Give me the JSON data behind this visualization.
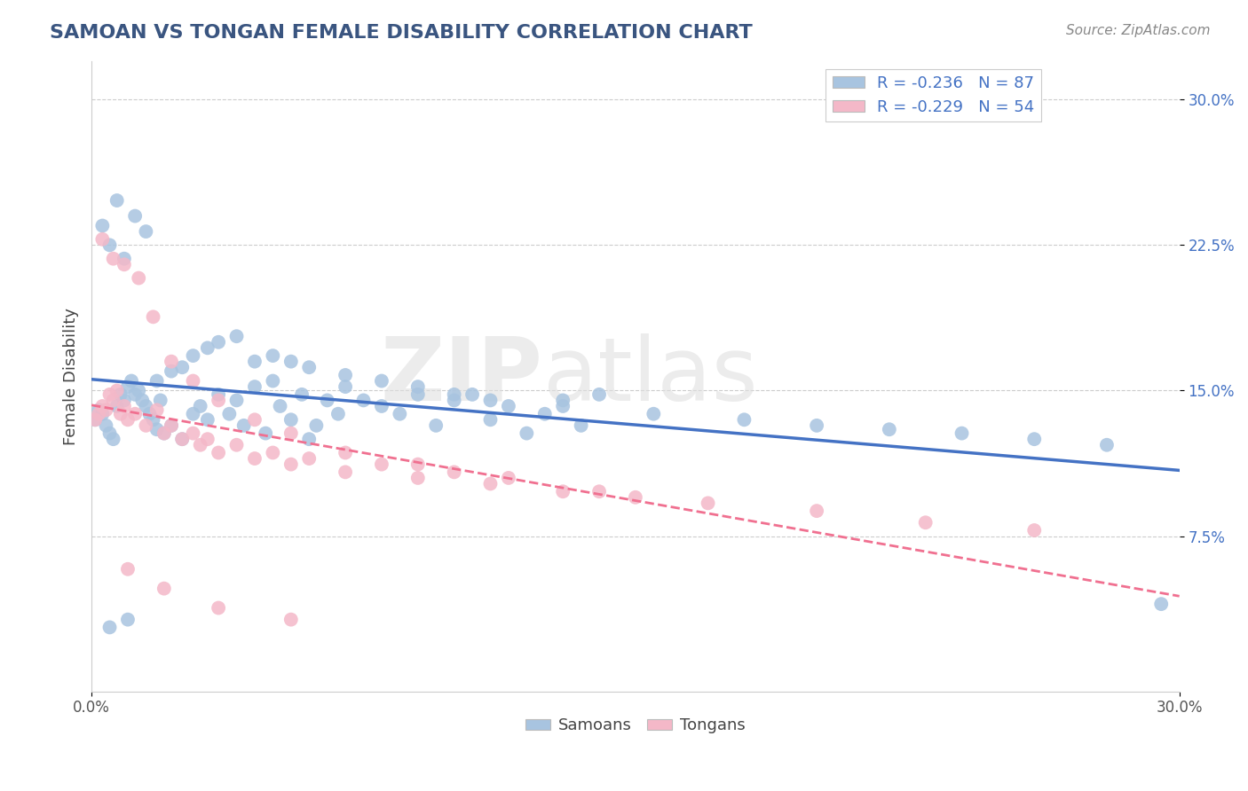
{
  "title": "SAMOAN VS TONGAN FEMALE DISABILITY CORRELATION CHART",
  "source": "Source: ZipAtlas.com",
  "ylabel": "Female Disability",
  "x_min": 0.0,
  "x_max": 0.3,
  "y_min": 0.0,
  "y_max": 0.32,
  "y_ticks": [
    0.075,
    0.15,
    0.225,
    0.3
  ],
  "y_tick_labels": [
    "7.5%",
    "15.0%",
    "22.5%",
    "30.0%"
  ],
  "grid_color": "#cccccc",
  "background_color": "#ffffff",
  "samoan_color": "#a8c4e0",
  "tongan_color": "#f4b8c8",
  "samoan_line_color": "#4472c4",
  "tongan_line_color": "#f07090",
  "R_samoan": -0.236,
  "N_samoan": 87,
  "R_tongan": -0.229,
  "N_tongan": 54,
  "watermark_zip": "ZIP",
  "watermark_atlas": "atlas",
  "samoans_x": [
    0.001,
    0.002,
    0.003,
    0.004,
    0.005,
    0.006,
    0.007,
    0.008,
    0.009,
    0.01,
    0.011,
    0.012,
    0.013,
    0.014,
    0.015,
    0.016,
    0.017,
    0.018,
    0.019,
    0.02,
    0.022,
    0.025,
    0.028,
    0.03,
    0.032,
    0.035,
    0.038,
    0.04,
    0.042,
    0.045,
    0.048,
    0.05,
    0.052,
    0.055,
    0.058,
    0.06,
    0.062,
    0.065,
    0.068,
    0.07,
    0.075,
    0.08,
    0.085,
    0.09,
    0.095,
    0.1,
    0.105,
    0.11,
    0.115,
    0.12,
    0.125,
    0.13,
    0.135,
    0.14,
    0.003,
    0.005,
    0.007,
    0.009,
    0.012,
    0.015,
    0.018,
    0.022,
    0.025,
    0.028,
    0.032,
    0.035,
    0.04,
    0.045,
    0.05,
    0.055,
    0.06,
    0.07,
    0.08,
    0.09,
    0.1,
    0.11,
    0.13,
    0.155,
    0.18,
    0.2,
    0.22,
    0.24,
    0.26,
    0.28,
    0.295,
    0.005,
    0.01
  ],
  "samoans_y": [
    0.135,
    0.14,
    0.138,
    0.132,
    0.128,
    0.125,
    0.142,
    0.148,
    0.145,
    0.152,
    0.155,
    0.148,
    0.15,
    0.145,
    0.142,
    0.138,
    0.135,
    0.13,
    0.145,
    0.128,
    0.132,
    0.125,
    0.138,
    0.142,
    0.135,
    0.148,
    0.138,
    0.145,
    0.132,
    0.152,
    0.128,
    0.155,
    0.142,
    0.135,
    0.148,
    0.125,
    0.132,
    0.145,
    0.138,
    0.152,
    0.145,
    0.142,
    0.138,
    0.148,
    0.132,
    0.145,
    0.148,
    0.135,
    0.142,
    0.128,
    0.138,
    0.145,
    0.132,
    0.148,
    0.235,
    0.225,
    0.248,
    0.218,
    0.24,
    0.232,
    0.155,
    0.16,
    0.162,
    0.168,
    0.172,
    0.175,
    0.178,
    0.165,
    0.168,
    0.165,
    0.162,
    0.158,
    0.155,
    0.152,
    0.148,
    0.145,
    0.142,
    0.138,
    0.135,
    0.132,
    0.13,
    0.128,
    0.125,
    0.122,
    0.04,
    0.028,
    0.032
  ],
  "tongans_x": [
    0.001,
    0.002,
    0.003,
    0.004,
    0.005,
    0.006,
    0.007,
    0.008,
    0.009,
    0.01,
    0.012,
    0.015,
    0.018,
    0.02,
    0.022,
    0.025,
    0.028,
    0.03,
    0.032,
    0.035,
    0.04,
    0.045,
    0.05,
    0.055,
    0.06,
    0.07,
    0.08,
    0.09,
    0.1,
    0.11,
    0.13,
    0.15,
    0.003,
    0.006,
    0.009,
    0.013,
    0.017,
    0.022,
    0.028,
    0.035,
    0.045,
    0.055,
    0.07,
    0.09,
    0.115,
    0.14,
    0.17,
    0.2,
    0.23,
    0.26,
    0.01,
    0.02,
    0.035,
    0.055
  ],
  "tongans_y": [
    0.135,
    0.138,
    0.142,
    0.14,
    0.148,
    0.145,
    0.15,
    0.138,
    0.142,
    0.135,
    0.138,
    0.132,
    0.14,
    0.128,
    0.132,
    0.125,
    0.128,
    0.122,
    0.125,
    0.118,
    0.122,
    0.115,
    0.118,
    0.112,
    0.115,
    0.108,
    0.112,
    0.105,
    0.108,
    0.102,
    0.098,
    0.095,
    0.228,
    0.218,
    0.215,
    0.208,
    0.188,
    0.165,
    0.155,
    0.145,
    0.135,
    0.128,
    0.118,
    0.112,
    0.105,
    0.098,
    0.092,
    0.088,
    0.082,
    0.078,
    0.058,
    0.048,
    0.038,
    0.032
  ]
}
